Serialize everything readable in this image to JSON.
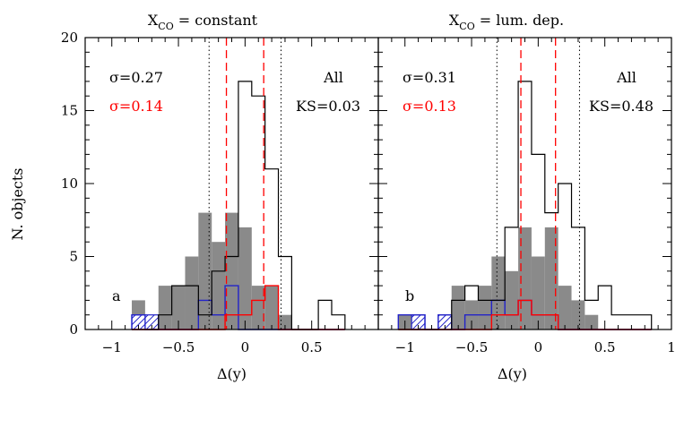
{
  "colors": {
    "axis": "#000000",
    "gray_fill": "#8a8a8a",
    "red": "#ff0000",
    "blue": "#2323c8"
  },
  "figure": {
    "ylabel": "N. objects"
  },
  "chart_data": [
    {
      "type": "histogram",
      "title": "X<sub>CO</sub> = constant",
      "title_main": "X",
      "title_sub": "CO",
      "title_rest": " = constant",
      "panel_label": "a",
      "sigma_black": "σ=0.27",
      "sigma_red": "σ=0.14",
      "all_label": "All",
      "ks_label": "KS=0.03",
      "xlabel": "Δ(y)",
      "xlim": [
        -1.2,
        1.0
      ],
      "ylim": [
        0,
        20
      ],
      "xticks": [
        -1,
        -0.5,
        0,
        0.5
      ],
      "xtick_labels": [
        "−1",
        "−0.5",
        "0",
        "0.5"
      ],
      "yticks": [
        0,
        5,
        10,
        15,
        20
      ],
      "ytick_labels": [
        "0",
        "5",
        "10",
        "15",
        "20"
      ],
      "bin_edges": [
        -0.85,
        -0.75,
        -0.65,
        -0.55,
        -0.45,
        -0.35,
        -0.25,
        -0.15,
        -0.05,
        0.05,
        0.15,
        0.25,
        0.35,
        0.45,
        0.55,
        0.65,
        0.75
      ],
      "series": [
        {
          "id": "gray",
          "values": [
            2,
            1,
            3,
            3,
            5,
            8,
            6,
            8,
            7,
            3,
            3,
            1,
            0,
            0,
            0,
            0
          ]
        },
        {
          "id": "black",
          "values": [
            0,
            0,
            1,
            3,
            3,
            1,
            4,
            5,
            17,
            16,
            11,
            5,
            0,
            0,
            2,
            1
          ]
        },
        {
          "id": "red",
          "values": [
            0,
            0,
            0,
            0,
            0,
            0,
            0,
            1,
            1,
            2,
            3,
            0,
            0,
            0,
            0,
            0
          ]
        },
        {
          "id": "blue",
          "values": [
            1,
            0,
            0,
            0,
            0,
            2,
            1,
            3,
            0,
            0,
            0,
            0,
            0,
            0,
            0,
            0
          ]
        }
      ],
      "hatched": [
        [
          -0.85,
          -0.65
        ]
      ],
      "vlines_black": [
        -0.27,
        0.27
      ],
      "vlines_red": [
        -0.14,
        0.14
      ]
    },
    {
      "type": "histogram",
      "title": "X<sub>CO</sub> = lum. dep.",
      "title_main": "X",
      "title_sub": "CO",
      "title_rest": " = lum. dep.",
      "panel_label": "b",
      "sigma_black": "σ=0.31",
      "sigma_red": "σ=0.13",
      "all_label": "All",
      "ks_label": "KS=0.48",
      "xlabel": "Δ(y)",
      "xlim": [
        -1.2,
        1.0
      ],
      "ylim": [
        0,
        20
      ],
      "xticks": [
        -1,
        -0.5,
        0,
        0.5,
        1
      ],
      "xtick_labels": [
        "−1",
        "−0.5",
        "0",
        "0.5",
        "1"
      ],
      "yticks": [
        0,
        5,
        10,
        15,
        20
      ],
      "ytick_labels": [
        "",
        "",
        "",
        "",
        ""
      ],
      "bin_edges": [
        -1.05,
        -0.95,
        -0.85,
        -0.75,
        -0.65,
        -0.55,
        -0.45,
        -0.35,
        -0.25,
        -0.15,
        -0.05,
        0.05,
        0.15,
        0.25,
        0.35,
        0.45,
        0.55,
        0.85
      ],
      "series": [
        {
          "id": "gray",
          "values": [
            1,
            1,
            0,
            1,
            3,
            2,
            3,
            5,
            4,
            7,
            5,
            7,
            3,
            2,
            1,
            0,
            0
          ]
        },
        {
          "id": "black",
          "values": [
            0,
            0,
            0,
            0,
            2,
            3,
            2,
            2,
            7,
            17,
            12,
            8,
            10,
            7,
            2,
            3,
            1
          ]
        },
        {
          "id": "red",
          "values": [
            0,
            0,
            0,
            0,
            0,
            0,
            0,
            1,
            1,
            2,
            1,
            1,
            0,
            0,
            0,
            0,
            0
          ]
        },
        {
          "id": "blue",
          "values": [
            1,
            1,
            0,
            1,
            0,
            1,
            1,
            2,
            1,
            2,
            1,
            1,
            0,
            0,
            0,
            0,
            0
          ]
        }
      ],
      "hatched": [
        [
          -0.95,
          -0.85
        ],
        [
          -0.75,
          -0.65
        ]
      ],
      "vlines_black": [
        -0.31,
        0.31
      ],
      "vlines_red": [
        -0.13,
        0.13
      ]
    }
  ]
}
